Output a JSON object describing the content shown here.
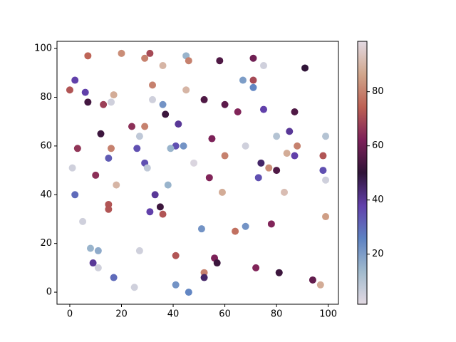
{
  "chart_data": {
    "type": "scatter",
    "colormap": "twilight",
    "xlim": [
      -4.95,
      103.95
    ],
    "xticks": [
      0,
      20,
      40,
      60,
      80,
      100
    ],
    "ylim": [
      -4.95,
      102.95
    ],
    "yticks": [
      0,
      20,
      40,
      60,
      80,
      100
    ],
    "clim": [
      1.5,
      98.6
    ],
    "cticks": [
      20,
      40,
      60,
      80
    ],
    "x": [
      7,
      20,
      29,
      31,
      36,
      45,
      46,
      58,
      71,
      75,
      91,
      2,
      0,
      6,
      7,
      17,
      16,
      13,
      32,
      32,
      36,
      37,
      45,
      52,
      60,
      65,
      67,
      71,
      71,
      75,
      87,
      12,
      24,
      27,
      29,
      3,
      16,
      26,
      42,
      41,
      44,
      39,
      55,
      60,
      68,
      80,
      85,
      88,
      99,
      1,
      15,
      29,
      30,
      48,
      74,
      77,
      80,
      84,
      87,
      98,
      98,
      99,
      10,
      18,
      33,
      38,
      54,
      59,
      73,
      83,
      2,
      15,
      15,
      35,
      31,
      36,
      5,
      51,
      64,
      68,
      78,
      99,
      8,
      11,
      27,
      41,
      56,
      57,
      9,
      11,
      72,
      52,
      52,
      81,
      17,
      25,
      41,
      46,
      94,
      97
    ],
    "y": [
      97,
      98,
      96,
      98,
      93,
      97,
      95,
      95,
      96,
      93,
      92,
      87,
      83,
      82,
      78,
      81,
      78,
      77,
      85,
      79,
      77,
      73,
      83,
      79,
      77,
      74,
      87,
      84,
      87,
      75,
      74,
      65,
      68,
      64,
      68,
      59,
      59,
      59,
      69,
      60,
      60,
      59,
      63,
      56,
      60,
      64,
      66,
      60,
      64,
      51,
      55,
      53,
      51,
      53,
      53,
      51,
      50,
      57,
      56,
      56,
      50,
      46,
      48,
      44,
      40,
      44,
      47,
      41,
      47,
      41,
      40,
      36,
      34,
      35,
      33,
      32,
      29,
      26,
      25,
      27,
      28,
      31,
      18,
      17,
      17,
      15,
      14,
      12,
      12,
      10,
      10,
      8,
      6,
      8,
      6,
      2,
      3,
      0,
      5,
      3
    ],
    "c": [
      75,
      82,
      80,
      70,
      90,
      15,
      80,
      55,
      60,
      5,
      50,
      38,
      72,
      38,
      53,
      88,
      5,
      68,
      80,
      5,
      22,
      52,
      90,
      55,
      57,
      63,
      20,
      25,
      70,
      38,
      55,
      52,
      65,
      8,
      80,
      66,
      80,
      35,
      40,
      35,
      22,
      15,
      62,
      80,
      5,
      10,
      40,
      80,
      10,
      5,
      33,
      35,
      8,
      3,
      45,
      82,
      55,
      88,
      38,
      72,
      35,
      5,
      65,
      90,
      40,
      15,
      63,
      88,
      35,
      92,
      30,
      72,
      72,
      52,
      38,
      72,
      5,
      22,
      77,
      22,
      63,
      85,
      15,
      17,
      5,
      72,
      62,
      52,
      40,
      5,
      63,
      80,
      45,
      52,
      30,
      5,
      22,
      25,
      58,
      88
    ]
  }
}
